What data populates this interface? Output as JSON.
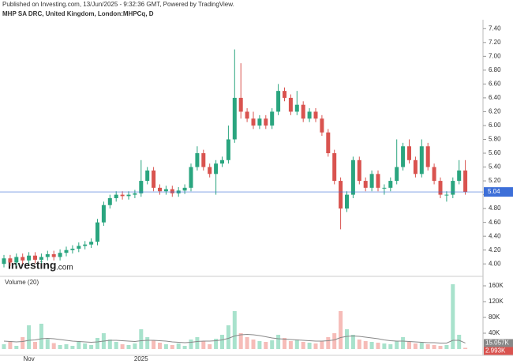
{
  "header": {
    "published": "Published on Investing.com, 13/Jun/2025 - 9:32:36 GMT, Powered by TradingView.",
    "watermark_bold": "Investing",
    "watermark_rest": ".com"
  },
  "chart_data": {
    "type": "candlestick",
    "title": "MHP SA DRC, United Kingdom, London:MHPCq, D",
    "categories": [
      null,
      null,
      null,
      null,
      "Nov",
      null,
      null,
      null,
      null,
      null,
      null,
      null,
      null,
      null,
      null,
      null,
      null,
      null,
      null,
      null,
      null,
      null,
      "2025",
      null,
      null,
      null,
      null,
      null,
      null,
      null,
      null,
      null,
      null,
      null,
      null,
      null,
      null,
      null,
      null,
      null,
      null,
      null,
      null,
      null,
      null,
      null,
      null,
      null,
      null,
      null,
      null,
      null,
      null,
      null,
      null,
      null,
      null,
      null,
      null,
      null,
      null,
      null,
      null,
      null,
      null,
      null,
      null,
      null,
      null,
      null,
      null,
      null,
      null,
      null,
      null
    ],
    "open": [
      4.0,
      4.08,
      4.02,
      4.1,
      4.05,
      4.12,
      4.06,
      4.1,
      4.14,
      4.1,
      4.16,
      4.2,
      4.22,
      4.26,
      4.28,
      4.32,
      4.6,
      4.85,
      4.95,
      5.0,
      4.98,
      5.0,
      5.02,
      5.2,
      5.35,
      5.1,
      5.05,
      5.08,
      5.02,
      5.06,
      5.1,
      5.4,
      5.6,
      5.4,
      5.3,
      5.45,
      5.5,
      5.8,
      6.4,
      6.2,
      6.1,
      6.0,
      6.1,
      6.0,
      6.2,
      6.5,
      6.4,
      6.2,
      6.3,
      6.1,
      6.2,
      6.1,
      5.9,
      5.6,
      5.2,
      4.8,
      5.0,
      5.5,
      5.2,
      5.1,
      5.3,
      5.1,
      5.1,
      5.2,
      5.4,
      5.7,
      5.5,
      5.3,
      5.7,
      5.4,
      5.2,
      5.0,
      5.0,
      5.2,
      5.35
    ],
    "high": [
      4.13,
      4.13,
      4.15,
      4.15,
      4.17,
      4.17,
      4.15,
      4.19,
      4.19,
      4.21,
      4.25,
      4.27,
      4.31,
      4.33,
      4.37,
      4.65,
      4.9,
      5.0,
      5.05,
      5.05,
      5.05,
      5.07,
      5.5,
      5.4,
      5.4,
      5.15,
      5.13,
      5.13,
      5.11,
      5.15,
      5.45,
      5.7,
      5.65,
      5.45,
      5.5,
      5.55,
      6.0,
      7.1,
      6.9,
      6.25,
      6.2,
      6.15,
      6.15,
      6.25,
      6.6,
      6.55,
      6.45,
      6.5,
      6.35,
      6.25,
      6.25,
      6.15,
      5.95,
      5.65,
      5.25,
      5.05,
      5.55,
      5.55,
      5.25,
      5.35,
      5.35,
      5.15,
      5.25,
      5.8,
      5.75,
      5.8,
      5.55,
      5.8,
      5.75,
      5.45,
      5.25,
      5.05,
      5.25,
      5.5,
      5.5
    ],
    "low": [
      3.95,
      3.97,
      3.97,
      4.0,
      4.0,
      4.01,
      4.01,
      4.05,
      4.05,
      4.05,
      4.11,
      4.15,
      4.17,
      4.21,
      4.23,
      4.27,
      4.55,
      4.8,
      4.9,
      4.93,
      4.93,
      4.95,
      4.97,
      5.15,
      5.05,
      5.0,
      5.0,
      4.97,
      4.97,
      5.01,
      5.05,
      5.35,
      5.35,
      5.25,
      5.0,
      5.4,
      5.45,
      5.75,
      6.1,
      6.05,
      5.95,
      5.95,
      5.95,
      5.95,
      6.15,
      6.35,
      6.15,
      6.15,
      6.05,
      6.05,
      6.05,
      5.85,
      5.55,
      5.15,
      4.5,
      4.75,
      4.95,
      5.15,
      5.05,
      5.05,
      5.05,
      5.0,
      5.05,
      5.15,
      5.35,
      5.45,
      5.25,
      5.25,
      5.35,
      5.15,
      4.95,
      4.9,
      4.95,
      5.15,
      5.0
    ],
    "close": [
      4.08,
      4.02,
      4.1,
      4.05,
      4.12,
      4.06,
      4.1,
      4.14,
      4.1,
      4.16,
      4.2,
      4.22,
      4.26,
      4.28,
      4.32,
      4.6,
      4.85,
      4.95,
      5.0,
      4.98,
      5.0,
      5.02,
      5.2,
      5.35,
      5.1,
      5.05,
      5.08,
      5.02,
      5.06,
      5.1,
      5.4,
      5.6,
      5.4,
      5.3,
      5.45,
      5.5,
      5.8,
      6.4,
      6.2,
      6.1,
      6.0,
      6.1,
      6.0,
      6.2,
      6.5,
      6.4,
      6.2,
      6.3,
      6.1,
      6.2,
      6.1,
      5.9,
      5.6,
      5.2,
      4.8,
      5.0,
      5.5,
      5.2,
      5.1,
      5.3,
      5.1,
      5.1,
      5.2,
      5.4,
      5.7,
      5.5,
      5.3,
      5.7,
      5.4,
      5.2,
      5.0,
      5.0,
      5.2,
      5.35,
      5.04
    ],
    "up_color": "#2aa57f",
    "down_color": "#d9534f",
    "ylim": [
      3.82,
      7.7
    ],
    "yticks": [
      {
        "value": 4.0,
        "label": "4.00"
      },
      {
        "value": 4.2,
        "label": "4.20"
      },
      {
        "value": 4.4,
        "label": "4.40"
      },
      {
        "value": 4.6,
        "label": "4.60"
      },
      {
        "value": 4.8,
        "label": "4.80"
      },
      {
        "value": 5.0,
        "label": "5.00"
      },
      {
        "value": 5.2,
        "label": "5.20"
      },
      {
        "value": 5.4,
        "label": "5.40"
      },
      {
        "value": 5.6,
        "label": "5.60"
      },
      {
        "value": 5.8,
        "label": "5.80"
      },
      {
        "value": 6.0,
        "label": "6.00"
      },
      {
        "value": 6.2,
        "label": "6.20"
      },
      {
        "value": 6.4,
        "label": "6.40"
      },
      {
        "value": 6.6,
        "label": "6.60"
      },
      {
        "value": 6.8,
        "label": "6.80"
      },
      {
        "value": 7.0,
        "label": "7.00"
      },
      {
        "value": 7.2,
        "label": "7.20"
      },
      {
        "value": 7.4,
        "label": "7.40"
      }
    ],
    "last_price": {
      "value": 5.04,
      "label": "5.04"
    },
    "last_price_color": "#3d6fd8",
    "volume_title": "Volume (20)",
    "volume": [
      12000,
      20000,
      8000,
      30000,
      60000,
      18000,
      64000,
      25000,
      15000,
      10000,
      12000,
      8000,
      20000,
      14000,
      10000,
      28000,
      40000,
      24000,
      18000,
      12000,
      10000,
      14000,
      50000,
      30000,
      22000,
      16000,
      12000,
      10000,
      14000,
      8000,
      24000,
      30000,
      20000,
      12000,
      26000,
      36000,
      60000,
      96000,
      40000,
      30000,
      24000,
      20000,
      18000,
      22000,
      36000,
      28000,
      20000,
      24000,
      18000,
      16000,
      14000,
      20000,
      30000,
      40000,
      96000,
      50000,
      36000,
      24000,
      20000,
      18000,
      16000,
      14000,
      12000,
      20000,
      30000,
      18000,
      14000,
      16000,
      12000,
      10000,
      8000,
      10000,
      164000,
      36000,
      2993
    ],
    "volume_ma": [
      20000,
      19000,
      18000,
      19000,
      22000,
      23000,
      26000,
      27000,
      26000,
      24000,
      22000,
      20000,
      19000,
      18000,
      17000,
      18000,
      20000,
      22000,
      22000,
      21000,
      20000,
      19000,
      21000,
      22000,
      22000,
      21000,
      20000,
      18000,
      17000,
      16000,
      17000,
      19000,
      20000,
      20000,
      21000,
      23000,
      27000,
      33000,
      36000,
      37000,
      36000,
      34000,
      31000,
      28000,
      26000,
      25000,
      24000,
      23000,
      22000,
      21000,
      20000,
      20000,
      21000,
      23000,
      29000,
      32000,
      33000,
      32000,
      30000,
      28000,
      26000,
      23000,
      21000,
      20000,
      20000,
      19000,
      18000,
      17000,
      16000,
      16000,
      15000,
      15000,
      22000,
      22000,
      15057
    ],
    "volume_ma_last": {
      "value": 15057,
      "label": "15.057K"
    },
    "volume_last": {
      "value": 2993,
      "label": "2.993K"
    },
    "volume_up_color": "#a8e2cc",
    "volume_down_color": "#f6bcb8",
    "volume_ma_color": "#888888",
    "volume_ylim": [
      0,
      166000
    ],
    "volume_ticks": [
      {
        "value": 40000,
        "label": "40K"
      },
      {
        "value": 80000,
        "label": "80K"
      },
      {
        "value": 120000,
        "label": "120K"
      },
      {
        "value": 160000,
        "label": "160K"
      }
    ],
    "grid": false
  }
}
